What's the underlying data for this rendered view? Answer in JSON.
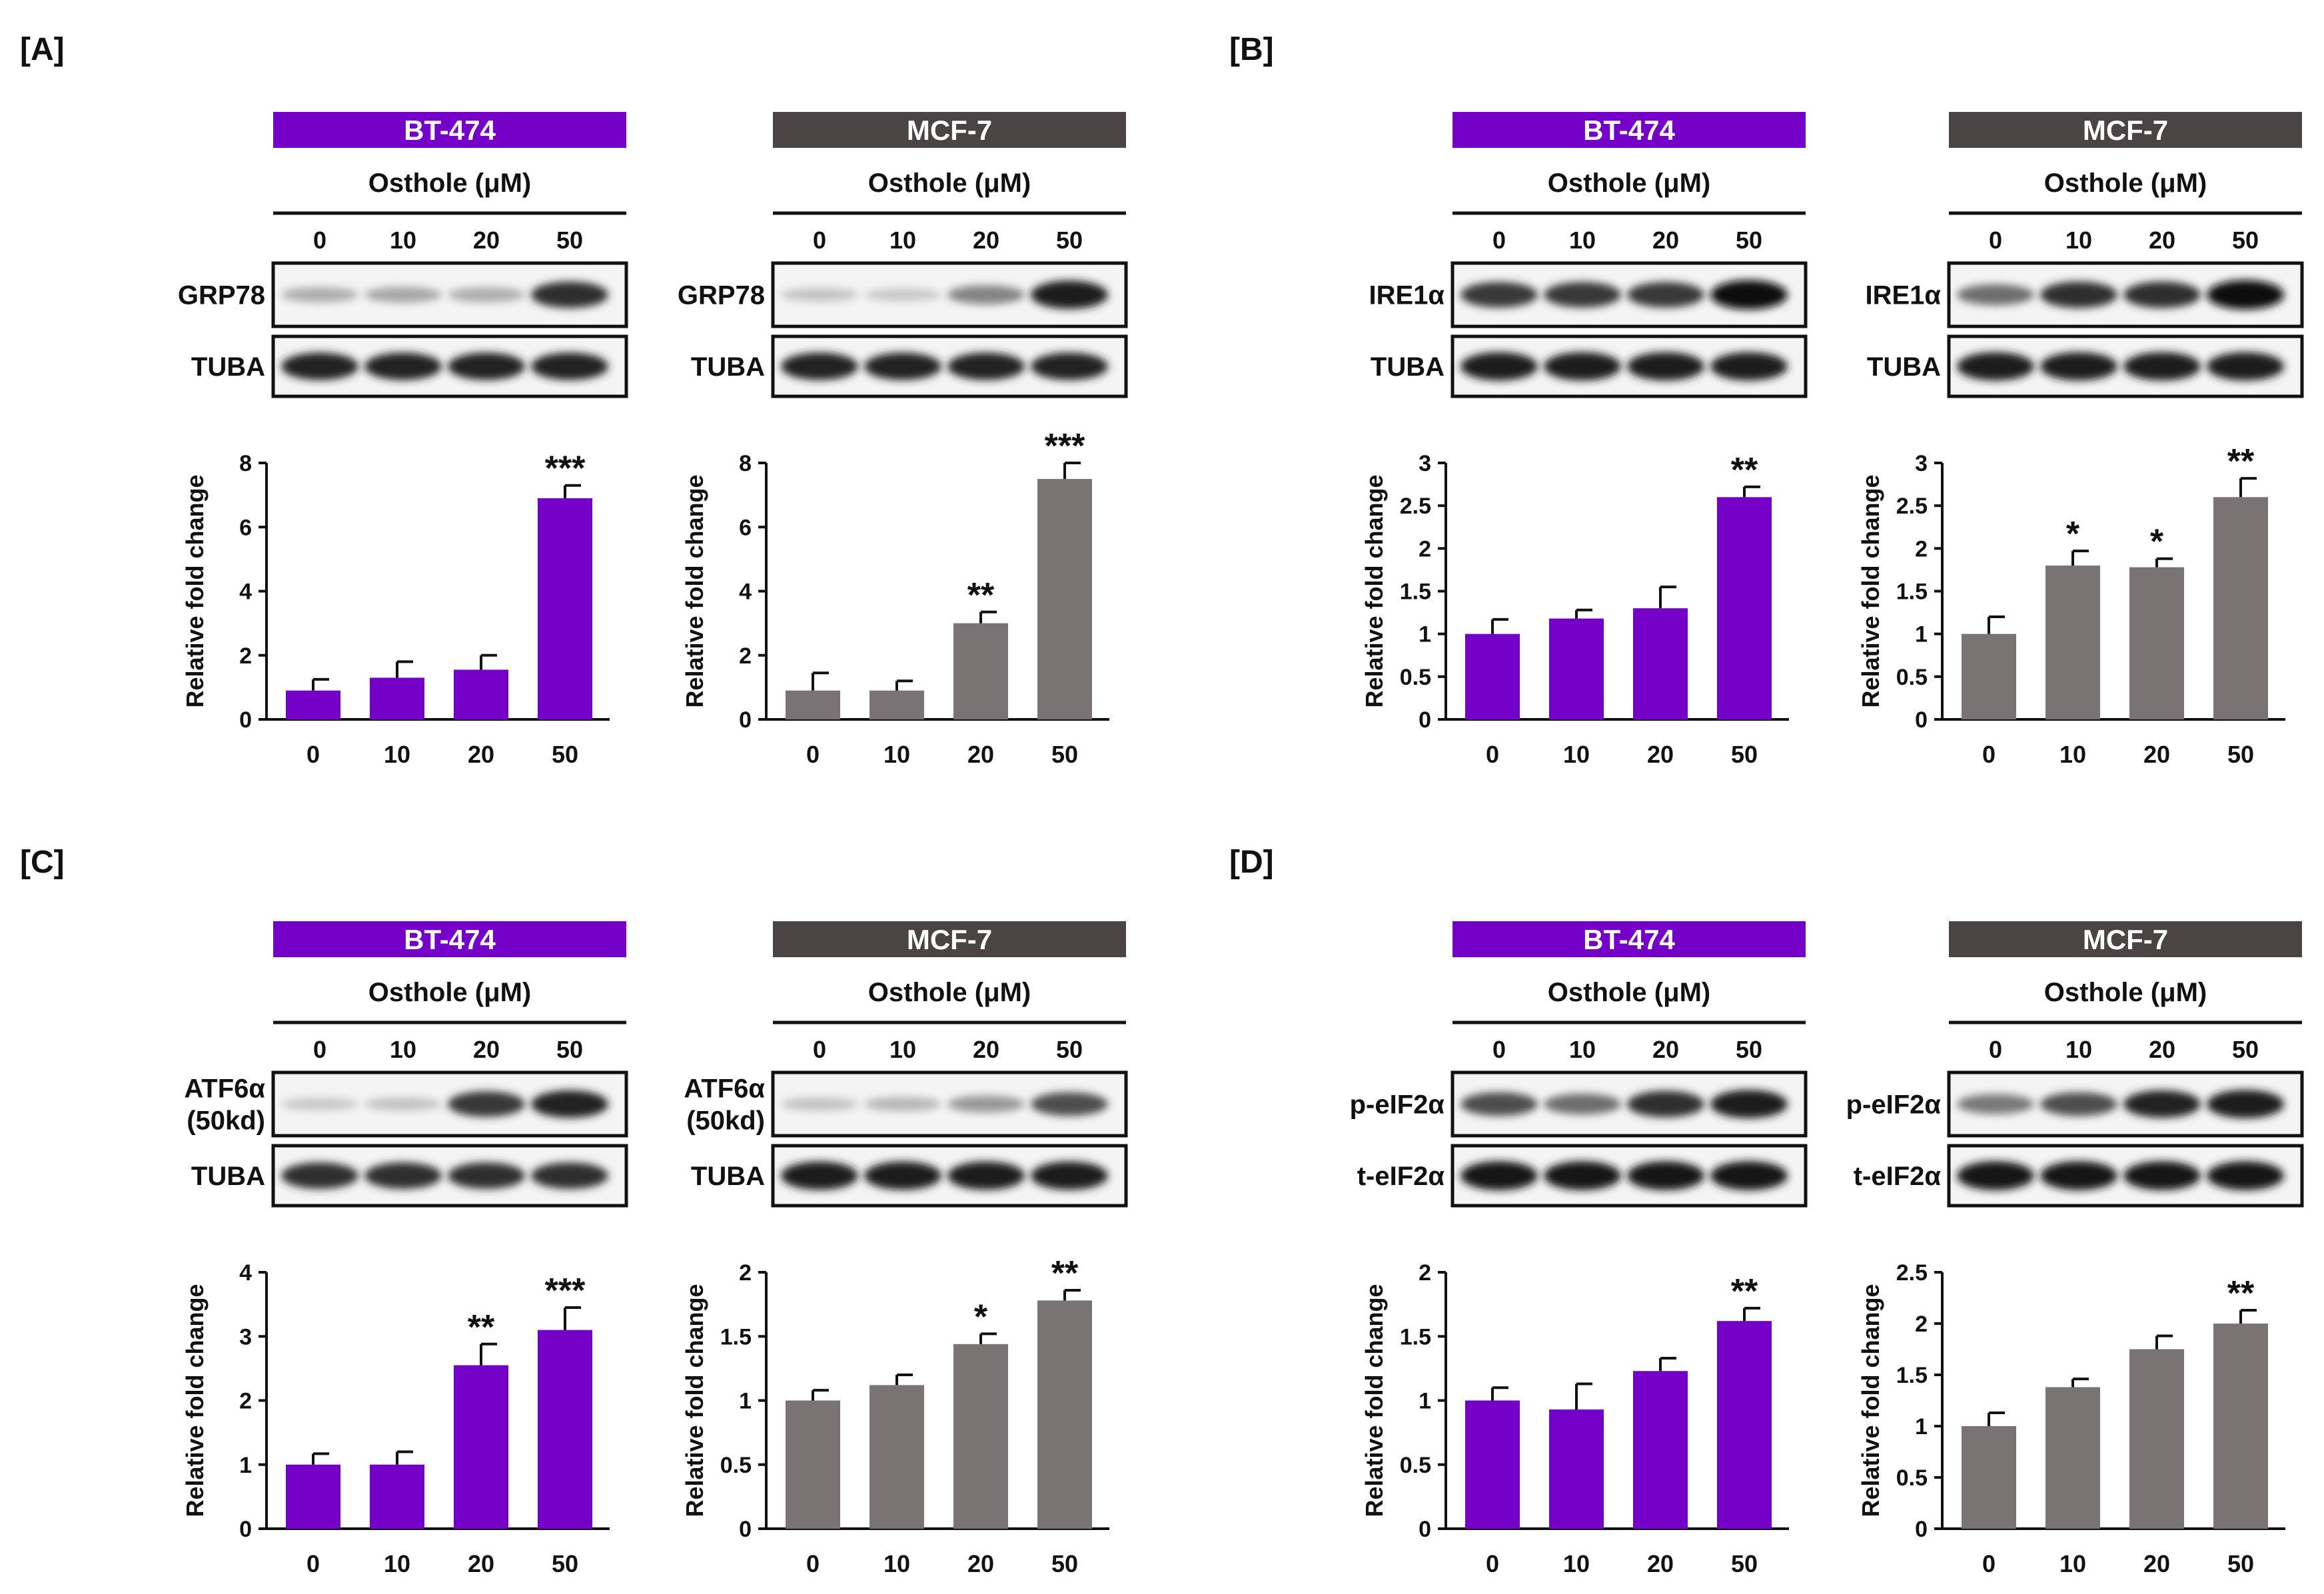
{
  "colors": {
    "bt474": "#7500c7",
    "mcf7": "#7a7373",
    "header_mcf7": "#4a4444"
  },
  "chart_data": [
    {
      "id": "A-bt474",
      "panel": "[A]",
      "type": "bar",
      "cell_line": "BT-474",
      "protein": "GRP78",
      "loading": "TUBA",
      "treatment": "Osthole (μM)",
      "categories": [
        "0",
        "10",
        "20",
        "50"
      ],
      "values": [
        0.9,
        1.3,
        1.55,
        6.9
      ],
      "errors": [
        0.35,
        0.5,
        0.45,
        0.4
      ],
      "significance": [
        "",
        "",
        "",
        "***"
      ],
      "ylabel": "Relative fold change",
      "ylim": [
        0,
        8
      ],
      "yticks": [
        "0",
        "2",
        "4",
        "6",
        "8"
      ]
    },
    {
      "id": "A-mcf7",
      "panel": "",
      "type": "bar",
      "cell_line": "MCF-7",
      "protein": "GRP78",
      "loading": "TUBA",
      "treatment": "Osthole (μM)",
      "categories": [
        "0",
        "10",
        "20",
        "50"
      ],
      "values": [
        0.9,
        0.9,
        3.0,
        7.5
      ],
      "errors": [
        0.55,
        0.3,
        0.35,
        0.5
      ],
      "significance": [
        "",
        "",
        "**",
        "***"
      ],
      "ylabel": "Relative fold change",
      "ylim": [
        0,
        8
      ],
      "yticks": [
        "0",
        "2",
        "4",
        "6",
        "8"
      ]
    },
    {
      "id": "B-bt474",
      "panel": "[B]",
      "type": "bar",
      "cell_line": "BT-474",
      "protein": "IRE1α",
      "loading": "TUBA",
      "treatment": "Osthole (μM)",
      "categories": [
        "0",
        "10",
        "20",
        "50"
      ],
      "values": [
        1.0,
        1.18,
        1.3,
        2.6
      ],
      "errors": [
        0.17,
        0.1,
        0.25,
        0.12
      ],
      "significance": [
        "",
        "",
        "",
        "**"
      ],
      "ylabel": "Relative fold change",
      "ylim": [
        0,
        3
      ],
      "yticks": [
        "0",
        "0.5",
        "1",
        "1.5",
        "2",
        "2.5",
        "3"
      ]
    },
    {
      "id": "B-mcf7",
      "panel": "",
      "type": "bar",
      "cell_line": "MCF-7",
      "protein": "IRE1α",
      "loading": "TUBA",
      "treatment": "Osthole (μM)",
      "categories": [
        "0",
        "10",
        "20",
        "50"
      ],
      "values": [
        1.0,
        1.8,
        1.78,
        2.6
      ],
      "errors": [
        0.2,
        0.17,
        0.1,
        0.22
      ],
      "significance": [
        "",
        "*",
        "*",
        "**"
      ],
      "ylabel": "Relative fold change",
      "ylim": [
        0,
        3
      ],
      "yticks": [
        "0",
        "0.5",
        "1",
        "1.5",
        "2",
        "2.5",
        "3"
      ]
    },
    {
      "id": "C-bt474",
      "panel": "[C]",
      "type": "bar",
      "cell_line": "BT-474",
      "protein": "ATF6α\n(50kd)",
      "loading": "TUBA",
      "treatment": "Osthole (μM)",
      "categories": [
        "0",
        "10",
        "20",
        "50"
      ],
      "values": [
        1.0,
        1.0,
        2.55,
        3.1
      ],
      "errors": [
        0.17,
        0.2,
        0.33,
        0.35
      ],
      "significance": [
        "",
        "",
        "**",
        "***"
      ],
      "ylabel": "Relative fold change",
      "ylim": [
        0,
        4
      ],
      "yticks": [
        "0",
        "1",
        "2",
        "3",
        "4"
      ]
    },
    {
      "id": "C-mcf7",
      "panel": "",
      "type": "bar",
      "cell_line": "MCF-7",
      "protein": "ATF6α\n(50kd)",
      "loading": "TUBA",
      "treatment": "Osthole (μM)",
      "categories": [
        "0",
        "10",
        "20",
        "50"
      ],
      "values": [
        1.0,
        1.12,
        1.44,
        1.78
      ],
      "errors": [
        0.08,
        0.08,
        0.08,
        0.08
      ],
      "significance": [
        "",
        "",
        "*",
        "**"
      ],
      "ylabel": "Relative fold change",
      "ylim": [
        0,
        2
      ],
      "yticks": [
        "0",
        "0.5",
        "1",
        "1.5",
        "2"
      ]
    },
    {
      "id": "D-bt474",
      "panel": "[D]",
      "type": "bar",
      "cell_line": "BT-474",
      "protein": "p-eIF2α",
      "loading": "t-eIF2α",
      "treatment": "Osthole (μM)",
      "categories": [
        "0",
        "10",
        "20",
        "50"
      ],
      "values": [
        1.0,
        0.93,
        1.23,
        1.62
      ],
      "errors": [
        0.1,
        0.2,
        0.1,
        0.1
      ],
      "significance": [
        "",
        "",
        "",
        "**"
      ],
      "ylabel": "Relative fold change",
      "ylim": [
        0,
        2
      ],
      "yticks": [
        "0",
        "0.5",
        "1",
        "1.5",
        "2"
      ]
    },
    {
      "id": "D-mcf7",
      "panel": "",
      "type": "bar",
      "cell_line": "MCF-7",
      "protein": "p-eIF2α",
      "loading": "t-eIF2α",
      "treatment": "Osthole (μM)",
      "categories": [
        "0",
        "10",
        "20",
        "50"
      ],
      "values": [
        1.0,
        1.38,
        1.75,
        2.0
      ],
      "errors": [
        0.13,
        0.08,
        0.13,
        0.13
      ],
      "significance": [
        "",
        "",
        "",
        "**"
      ],
      "ylabel": "Relative fold change",
      "ylim": [
        0,
        2.5
      ],
      "yticks": [
        "0",
        "0.5",
        "1",
        "1.5",
        "2",
        "2.5"
      ]
    }
  ],
  "blots": {
    "A-bt474": {
      "target": [
        0.25,
        0.28,
        0.25,
        0.85
      ],
      "loading": [
        0.9,
        0.9,
        0.9,
        0.9
      ]
    },
    "A-mcf7": {
      "target": [
        0.15,
        0.12,
        0.45,
        0.95
      ],
      "loading": [
        0.9,
        0.9,
        0.9,
        0.9
      ]
    },
    "B-bt474": {
      "target": [
        0.8,
        0.8,
        0.8,
        1.0
      ],
      "loading": [
        0.95,
        0.95,
        0.95,
        0.95
      ]
    },
    "B-mcf7": {
      "target": [
        0.55,
        0.85,
        0.85,
        1.0
      ],
      "loading": [
        0.95,
        0.95,
        0.95,
        0.95
      ]
    },
    "C-bt474": {
      "target": [
        0.12,
        0.15,
        0.8,
        0.9
      ],
      "loading": [
        0.85,
        0.85,
        0.85,
        0.85
      ]
    },
    "C-mcf7": {
      "target": [
        0.15,
        0.2,
        0.35,
        0.7
      ],
      "loading": [
        0.95,
        0.95,
        0.95,
        0.95
      ]
    },
    "D-bt474": {
      "target": [
        0.7,
        0.55,
        0.85,
        0.95
      ],
      "loading": [
        0.98,
        0.98,
        0.98,
        0.98
      ]
    },
    "D-mcf7": {
      "target": [
        0.5,
        0.7,
        0.9,
        0.95
      ],
      "loading": [
        0.98,
        0.98,
        0.98,
        0.98
      ]
    }
  }
}
